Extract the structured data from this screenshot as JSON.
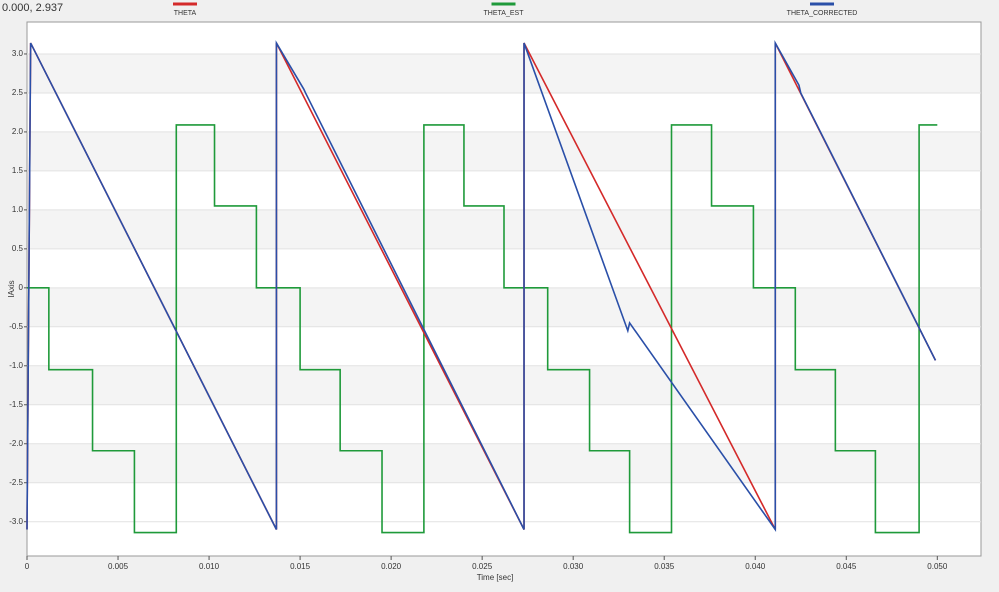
{
  "chart_data": {
    "type": "line",
    "readout": "0.000, 2.937",
    "xlabel": "Time [sec]",
    "ylabel": "IAxis",
    "legend": "top",
    "grid": true,
    "xlim": [
      0,
      0.0524
    ],
    "ylim": [
      -3.44,
      3.41
    ],
    "xticks": [
      0,
      0.005,
      {
        "value": 0.01,
        "label": "0.010"
      },
      0.015,
      {
        "value": 0.02,
        "label": "0.020"
      },
      0.025,
      {
        "value": 0.03,
        "label": "0.030"
      },
      0.035,
      {
        "value": 0.04,
        "label": "0.040"
      },
      0.045,
      {
        "value": 0.05,
        "label": "0.050"
      }
    ],
    "yticks": [
      {
        "value": -3,
        "label": "-3.0"
      },
      {
        "value": -2.5,
        "label": "-2.5"
      },
      {
        "value": -2,
        "label": "-2.0"
      },
      {
        "value": -1.5,
        "label": "-1.5"
      },
      {
        "value": -1,
        "label": "-1.0"
      },
      {
        "value": -0.5,
        "label": "-0.5"
      },
      0,
      {
        "value": 0.5,
        "label": "0.5"
      },
      {
        "value": 1,
        "label": "1.0"
      },
      {
        "value": 1.5,
        "label": "1.5"
      },
      {
        "value": 2,
        "label": "2.0"
      },
      {
        "value": 2.5,
        "label": "2.5"
      },
      {
        "value": 3,
        "label": "3.0"
      }
    ],
    "series": [
      {
        "name": "THETA",
        "color": "#d42a2a",
        "x": [
          0,
          0.0002,
          0.0137,
          0.0137,
          0.0273,
          0.0273,
          0.0411,
          0.0411,
          0.0499
        ],
        "values": [
          -3.1,
          3.14,
          -3.1,
          3.14,
          -3.1,
          3.14,
          -3.1,
          3.14,
          -0.93
        ]
      },
      {
        "name": "THETA_EST",
        "color": "#1f9a3a",
        "x": [
          0,
          0.0012,
          0.0012,
          0.0036,
          0.0036,
          0.0059,
          0.0059,
          0.0082,
          0.0082,
          0.0103,
          0.0103,
          0.0126,
          0.0126,
          0.015,
          0.015,
          0.0172,
          0.0172,
          0.0195,
          0.0195,
          0.0218,
          0.0218,
          0.024,
          0.024,
          0.0262,
          0.0262,
          0.0286,
          0.0286,
          0.0309,
          0.0309,
          0.0331,
          0.0331,
          0.0354,
          0.0354,
          0.0376,
          0.0376,
          0.0399,
          0.0399,
          0.0422,
          0.0422,
          0.0444,
          0.0444,
          0.0466,
          0.0466,
          0.049,
          0.049,
          0.05
        ],
        "values": [
          0,
          0,
          -1.05,
          -1.05,
          -2.09,
          -2.09,
          -3.14,
          -3.14,
          2.09,
          2.09,
          1.05,
          1.05,
          0,
          0,
          -1.05,
          -1.05,
          -2.09,
          -2.09,
          -3.14,
          -3.14,
          2.09,
          2.09,
          1.05,
          1.05,
          0,
          0,
          -1.05,
          -1.05,
          -2.09,
          -2.09,
          -3.14,
          -3.14,
          2.09,
          2.09,
          1.05,
          1.05,
          0,
          0,
          -1.05,
          -1.05,
          -2.09,
          -2.09,
          -3.14,
          -3.14,
          2.09,
          2.09
        ]
      },
      {
        "name": "THETA_CORRECTED",
        "color": "#2a4fa8",
        "x": [
          0,
          0.0002,
          0.0137,
          0.0137,
          0.0152,
          0.0153,
          0.0273,
          0.0273,
          0.033,
          0.0331,
          0.0411,
          0.0411,
          0.0424,
          0.0425,
          0.0499
        ],
        "values": [
          -3.1,
          3.14,
          -3.1,
          3.14,
          2.55,
          2.5,
          -3.1,
          3.14,
          -0.55,
          -0.45,
          -3.1,
          3.14,
          2.6,
          2.5,
          -0.93
        ]
      }
    ]
  }
}
